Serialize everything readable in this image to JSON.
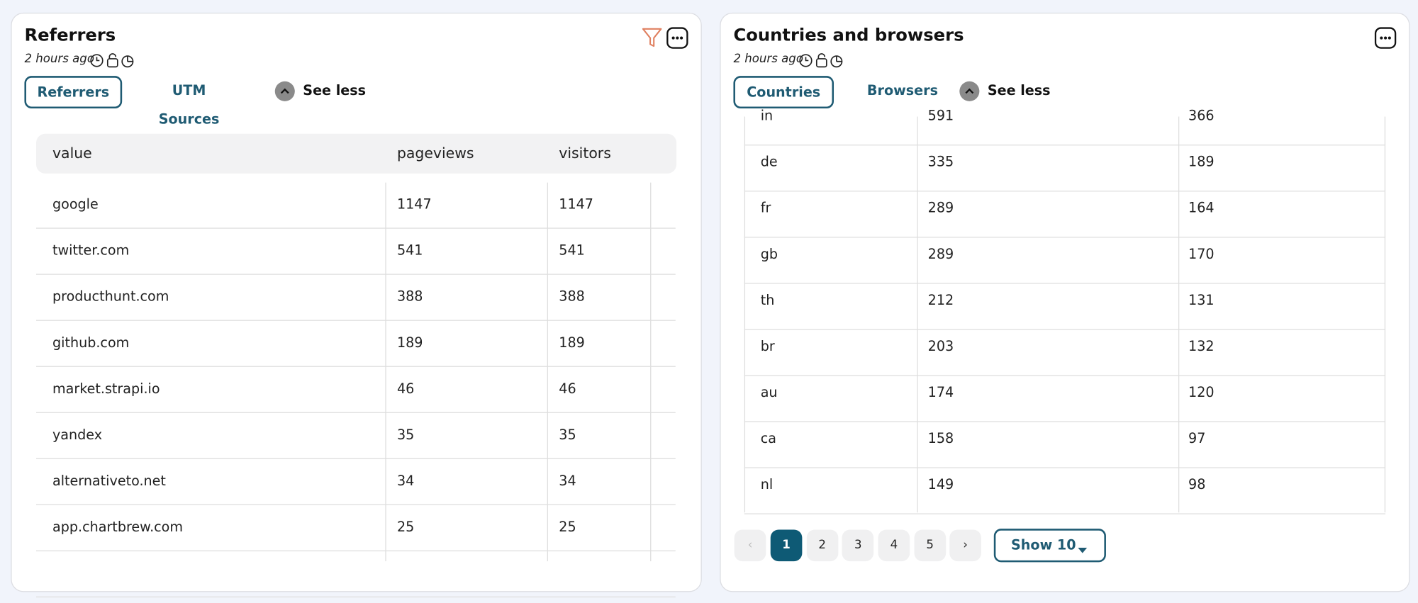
{
  "panels": [
    {
      "title": "Referrers",
      "updated": "2 hours ago",
      "tabs": [
        "Referrers",
        "UTM Sources"
      ],
      "see_less": "See less",
      "table": {
        "columns": [
          "value",
          "pageviews",
          "visitors"
        ],
        "rows": [
          [
            "google",
            1147,
            1147
          ],
          [
            "twitter.com",
            541,
            541
          ],
          [
            "producthunt.com",
            388,
            388
          ],
          [
            "github.com",
            189,
            189
          ],
          [
            "market.strapi.io",
            46,
            46
          ],
          [
            "yandex",
            35,
            35
          ],
          [
            "alternativeto.net",
            34,
            34
          ],
          [
            "app.chartbrew.com",
            25,
            25
          ]
        ]
      }
    },
    {
      "title": "Countries and browsers",
      "updated": "2 hours ago",
      "tabs": [
        "Countries",
        "Browsers"
      ],
      "see_less": "See less",
      "table": {
        "rows": [
          [
            "in",
            591,
            366
          ],
          [
            "de",
            335,
            189
          ],
          [
            "fr",
            289,
            164
          ],
          [
            "gb",
            289,
            170
          ],
          [
            "th",
            212,
            131
          ],
          [
            "br",
            203,
            132
          ],
          [
            "au",
            174,
            120
          ],
          [
            "ca",
            158,
            97
          ],
          [
            "nl",
            149,
            98
          ]
        ]
      },
      "pagination": {
        "pages": [
          "1",
          "2",
          "3",
          "4",
          "5"
        ],
        "page_size": "Show 10"
      }
    }
  ]
}
